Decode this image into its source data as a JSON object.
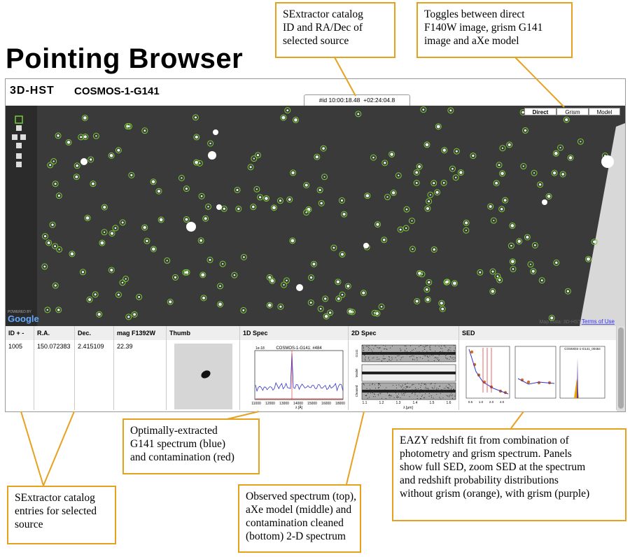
{
  "title": "Pointing Browser",
  "header": {
    "logo": "3D-HST",
    "field": "COSMOS-1-G141",
    "coords": [
      "#id",
      "10:00:18.48",
      "+02:24:04.8"
    ]
  },
  "toggles": [
    "Direct",
    "Grism",
    "Model"
  ],
  "map": {
    "powered_by": "POWERED BY",
    "google": "Google",
    "map_data": "Map Data: 3D-HST",
    "terms": "Terms of Use"
  },
  "table": {
    "headers": [
      "ID + -",
      "R.A.",
      "Dec.",
      "mag F1392W",
      "Thumb",
      "1D Spec",
      "2D Spec",
      "SED"
    ],
    "row": [
      "1005",
      "150.072383",
      "2.415109",
      "22.39"
    ]
  },
  "spec1d": {
    "title": "COSMOS-1-G141: #484",
    "scale": "1e-18",
    "xticks": [
      "11000",
      "12000",
      "13000",
      "14000",
      "15000",
      "16000",
      "18000"
    ],
    "xlabel": "λ [Å]"
  },
  "spec2d": {
    "row_labels": [
      "G141",
      "Model",
      "Cleaned"
    ],
    "xticks": [
      "1.1",
      "1.2",
      "1.3",
      "1.4",
      "1.5",
      "1.6"
    ],
    "xlabel": "λ [μm]"
  },
  "sed": {
    "panel_titles": [
      "COSMOS-1-G141_00484"
    ],
    "xticks": [
      "0.5",
      "1.0",
      "2.0",
      "4.0"
    ]
  },
  "annotations": [
    {
      "lines": [
        "SExtractor catalog",
        "ID and RA/Dec of",
        "selected source"
      ]
    },
    {
      "lines": [
        "Toggles between direct",
        "F140W image, grism G141",
        "image and aXe model"
      ]
    },
    {
      "lines": [
        "Optimally-extracted",
        "G141 spectrum (blue)",
        "and contamination (red)"
      ]
    },
    {
      "lines": [
        "EAZY redshift fit from combination of",
        "photometry and grism spectrum.  Panels",
        "show full SED, zoom SED at the spectrum",
        "and redshift probability distributions",
        "without grism (orange), with grism (purple)"
      ]
    },
    {
      "lines": [
        "SExtractor catalog",
        "entries for selected",
        "source"
      ]
    },
    {
      "lines": [
        "Observed spectrum (top),",
        "aXe model (middle) and",
        "contamination cleaned",
        "(bottom) 2-D spectrum"
      ]
    }
  ]
}
